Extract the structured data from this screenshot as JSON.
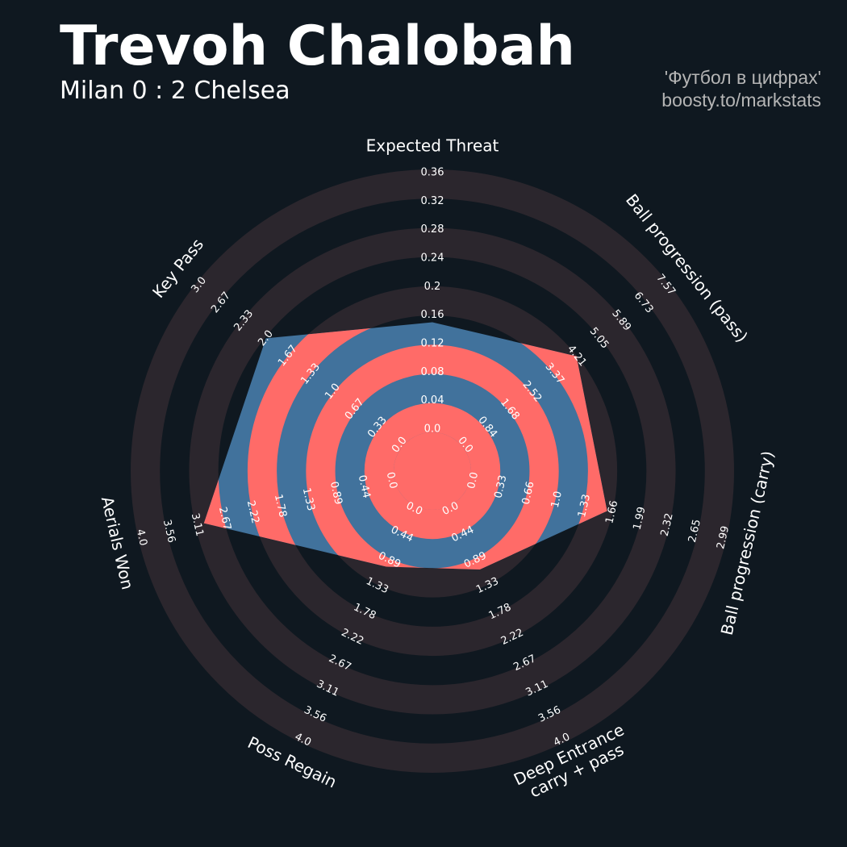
{
  "chart_data": {
    "type": "radar",
    "title": "Trevoh Chalobah",
    "subtitle": "Milan 0 : 2 Chelsea",
    "annotations": [
      "'Футбол в цифрах'",
      "boosty.to/markstats"
    ],
    "categories": [
      "Expected Threat",
      "Ball progression (pass)",
      "Ball progression (carry)",
      "Deep Entrance\ncarry + pass",
      "Poss Regain",
      "Aerials Won",
      "Key Pass"
    ],
    "axes": [
      {
        "lim": [
          0,
          0.36
        ],
        "ticks": [
          {
            "value": 0,
            "label": "0.0"
          },
          0.04,
          0.08,
          0.12,
          0.16,
          0.2,
          0.24,
          0.28,
          0.32,
          0.36
        ]
      },
      {
        "lim": [
          0,
          7.57
        ],
        "ticks": [
          {
            "value": 0,
            "label": "0.0"
          },
          0.84,
          1.68,
          2.52,
          3.37,
          4.21,
          5.05,
          5.89,
          6.73,
          7.57
        ]
      },
      {
        "lim": [
          0,
          2.99
        ],
        "ticks": [
          {
            "value": 0,
            "label": "0.0"
          },
          0.33,
          0.66,
          {
            "value": 1,
            "label": "1.0"
          },
          1.33,
          1.66,
          1.99,
          2.32,
          2.65,
          2.99
        ]
      },
      {
        "lim": [
          0,
          4
        ],
        "ticks": [
          {
            "value": 0,
            "label": "0.0"
          },
          0.44,
          0.89,
          1.33,
          1.78,
          2.22,
          2.67,
          3.11,
          3.56,
          {
            "value": 4,
            "label": "4.0"
          }
        ]
      },
      {
        "lim": [
          0,
          4
        ],
        "ticks": [
          {
            "value": 0,
            "label": "0.0"
          },
          0.44,
          0.89,
          1.33,
          1.78,
          2.22,
          2.67,
          3.11,
          3.56,
          {
            "value": 4,
            "label": "4.0"
          }
        ]
      },
      {
        "lim": [
          0,
          4
        ],
        "ticks": [
          {
            "value": 0,
            "label": "0.0"
          },
          0.44,
          0.89,
          1.33,
          1.78,
          2.22,
          2.67,
          3.11,
          3.56,
          {
            "value": 4,
            "label": "4.0"
          }
        ]
      },
      {
        "lim": [
          0,
          3
        ],
        "ticks": [
          {
            "value": 0,
            "label": "0.0"
          },
          0.33,
          0.67,
          {
            "value": 1,
            "label": "1.0"
          },
          1.33,
          1.67,
          {
            "value": 2,
            "label": "2.0"
          },
          2.33,
          2.67,
          {
            "value": 3,
            "label": "3.0"
          }
        ]
      }
    ],
    "series": [
      {
        "values": [
          0.15,
          4.2,
          1.6,
          1.05,
          1.0,
          3.0,
          2.0
        ],
        "color": "#41729c",
        "alt_color": "#ff6b68"
      }
    ],
    "ring_color": "#2b262d"
  }
}
